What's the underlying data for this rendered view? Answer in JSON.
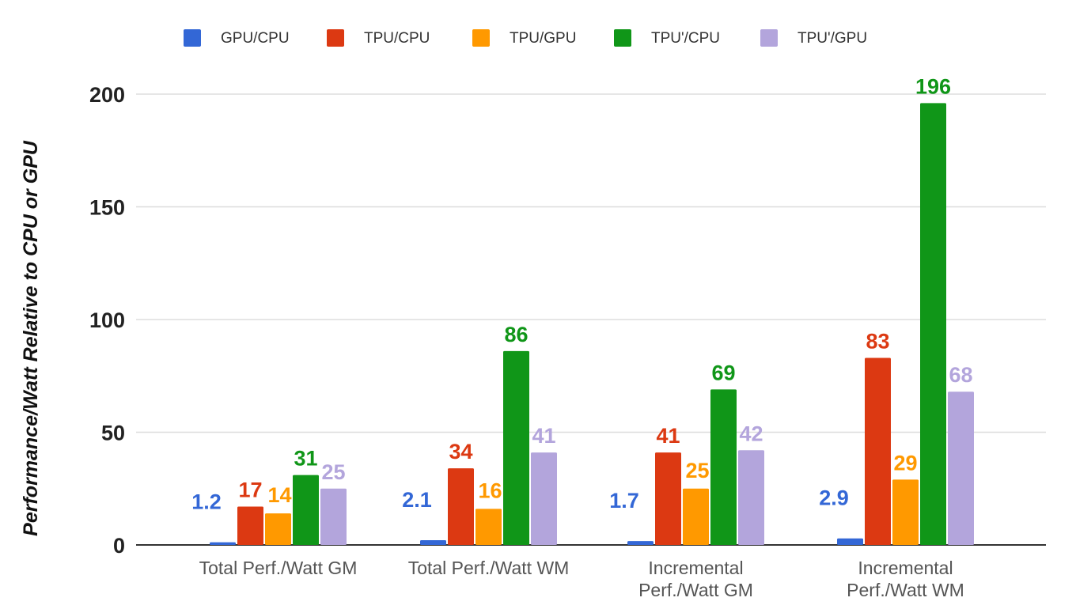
{
  "chart_data": {
    "type": "bar",
    "title": "",
    "xlabel": "",
    "ylabel": "Performance/Watt Relative to CPU or GPU",
    "ylim": [
      0,
      200
    ],
    "yticks": [
      0,
      50,
      100,
      150,
      200
    ],
    "grid": true,
    "legend_position": "top",
    "categories": [
      [
        "Total Perf./Watt GM"
      ],
      [
        "Total Perf./Watt WM"
      ],
      [
        "Incremental",
        "Perf./Watt GM"
      ],
      [
        "Incremental",
        "Perf./Watt WM"
      ]
    ],
    "series": [
      {
        "name": "GPU/CPU",
        "color": "#3367d6",
        "values": [
          1.2,
          2.1,
          1.7,
          2.9
        ],
        "labels": [
          "1.2",
          "2.1",
          "1.7",
          "2.9"
        ]
      },
      {
        "name": "TPU/CPU",
        "color": "#dc3912",
        "values": [
          17,
          34,
          41,
          83
        ],
        "labels": [
          "17",
          "34",
          "41",
          "83"
        ]
      },
      {
        "name": "TPU/GPU",
        "color": "#ff9900",
        "values": [
          14,
          16,
          25,
          29
        ],
        "labels": [
          "14",
          "16",
          "25",
          "29"
        ]
      },
      {
        "name": "TPU'/CPU",
        "color": "#109618",
        "values": [
          31,
          86,
          69,
          196
        ],
        "labels": [
          "31",
          "86",
          "69",
          "196"
        ]
      },
      {
        "name": "TPU'/GPU",
        "color": "#b3a5dc",
        "values": [
          25,
          41,
          42,
          68
        ],
        "labels": [
          "25",
          "41",
          "42",
          "68"
        ]
      }
    ]
  }
}
